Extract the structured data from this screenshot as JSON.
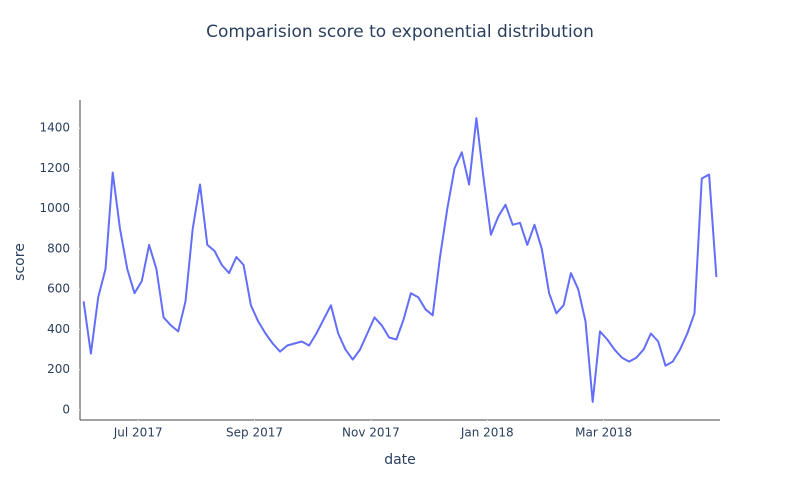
{
  "chart_data": {
    "type": "line",
    "title": "Comparision score to exponential distribution",
    "x_label": "date",
    "y_label": "score",
    "x": [
      "2017-06",
      "2017-06",
      "2017-06",
      "2017-06",
      "2017-06",
      "2017-06",
      "2017-06",
      "2017-06",
      "2017-07",
      "2017-07",
      "2017-07",
      "2017-07",
      "2017-07",
      "2017-07",
      "2017-07",
      "2017-07",
      "2017-08",
      "2017-08",
      "2017-08",
      "2017-08",
      "2017-08",
      "2017-08",
      "2017-08",
      "2017-08",
      "2017-09",
      "2017-09",
      "2017-09",
      "2017-09",
      "2017-09",
      "2017-09",
      "2017-09",
      "2017-09",
      "2017-10",
      "2017-10",
      "2017-10",
      "2017-10",
      "2017-10",
      "2017-10",
      "2017-10",
      "2017-10",
      "2017-11",
      "2017-11",
      "2017-11",
      "2017-11",
      "2017-11",
      "2017-11",
      "2017-11",
      "2017-11",
      "2017-12",
      "2017-12",
      "2017-12",
      "2017-12",
      "2017-12",
      "2017-12",
      "2017-12",
      "2017-12",
      "2018-01",
      "2018-01",
      "2018-01",
      "2018-01",
      "2018-01",
      "2018-01",
      "2018-01",
      "2018-01",
      "2018-02",
      "2018-02",
      "2018-02",
      "2018-02",
      "2018-02",
      "2018-02",
      "2018-02",
      "2018-02",
      "2018-03",
      "2018-03",
      "2018-03",
      "2018-03",
      "2018-03",
      "2018-03",
      "2018-03",
      "2018-03",
      "2018-04",
      "2018-04",
      "2018-04",
      "2018-04",
      "2018-04",
      "2018-04",
      "2018-04",
      "2018-04"
    ],
    "series": [
      {
        "name": "score",
        "color": "#636efa",
        "values": [
          540,
          280,
          560,
          700,
          1180,
          900,
          700,
          580,
          640,
          820,
          700,
          460,
          420,
          390,
          540,
          900,
          1120,
          820,
          790,
          720,
          680,
          760,
          720,
          520,
          440,
          380,
          330,
          290,
          320,
          330,
          340,
          320,
          380,
          450,
          520,
          380,
          300,
          250,
          300,
          380,
          460,
          420,
          360,
          350,
          450,
          580,
          560,
          500,
          470,
          760,
          1000,
          1200,
          1280,
          1120,
          1450,
          1150,
          870,
          960,
          1020,
          920,
          930,
          820,
          920,
          800,
          580,
          480,
          520,
          680,
          600,
          440,
          40,
          390,
          350,
          300,
          260,
          240,
          260,
          300,
          380,
          340,
          220,
          240,
          300,
          380,
          480,
          1150,
          1170,
          660
        ]
      }
    ],
    "xlim": [
      "2017-06",
      "2018-04"
    ],
    "xticks": [
      {
        "value": "2017-07",
        "label": "Jul 2017"
      },
      {
        "value": "2017-09",
        "label": "Sep 2017"
      },
      {
        "value": "2017-11",
        "label": "Nov 2017"
      },
      {
        "value": "2018-01",
        "label": "Jan 2018"
      },
      {
        "value": "2018-03",
        "label": "Mar 2018"
      }
    ],
    "ylim": [
      -50,
      1540
    ],
    "yticks": [
      0,
      200,
      400,
      600,
      800,
      1000,
      1200,
      1400
    ],
    "grid": false
  }
}
